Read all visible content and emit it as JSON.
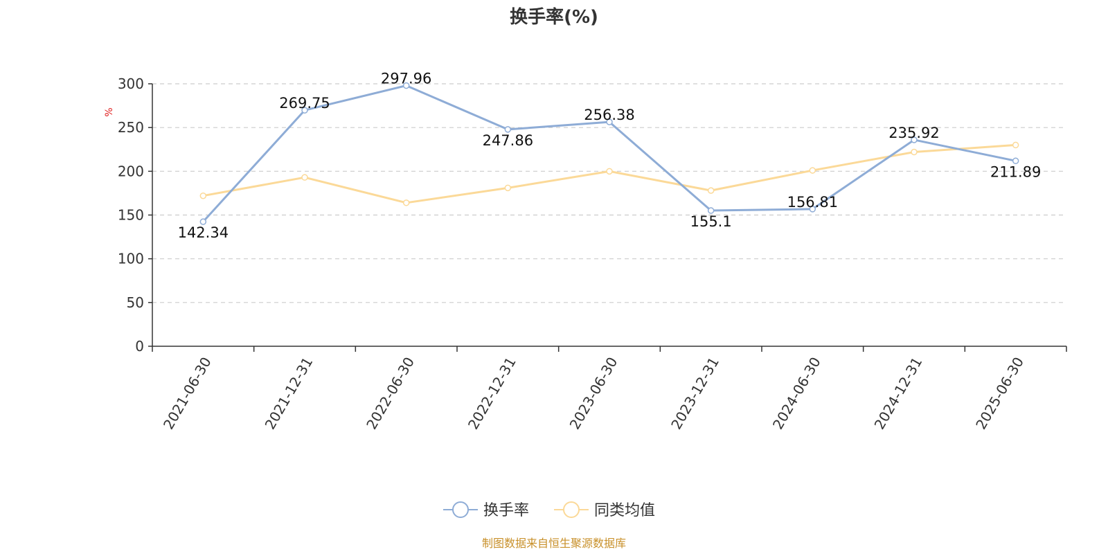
{
  "chart_data": {
    "type": "line",
    "title": "换手率(%)",
    "ylabel": "%",
    "ylim": [
      0,
      300
    ],
    "yticks": [
      0,
      50,
      100,
      150,
      200,
      250,
      300
    ],
    "categories": [
      "2021-06-30",
      "2021-12-31",
      "2022-06-30",
      "2022-12-31",
      "2023-06-30",
      "2023-12-31",
      "2024-06-30",
      "2024-12-31",
      "2025-06-30"
    ],
    "series": [
      {
        "name": "换手率",
        "color": "#8eacd6",
        "values": [
          142.34,
          269.75,
          297.96,
          247.86,
          256.38,
          155.1,
          156.81,
          235.92,
          211.89
        ],
        "labels": [
          "142.34",
          "269.75",
          "297.96",
          "247.86",
          "256.38",
          "155.1",
          "156.81",
          "235.92",
          "211.89"
        ]
      },
      {
        "name": "同类均值",
        "color": "#fbd998",
        "values": [
          172,
          193,
          164,
          181,
          200,
          178,
          201,
          222,
          230
        ]
      }
    ],
    "grid": true,
    "legend_position": "bottom-center",
    "source": "制图数据来自恒生聚源数据库",
    "source_color": "#c8902a",
    "unit_color": "#e02020"
  }
}
